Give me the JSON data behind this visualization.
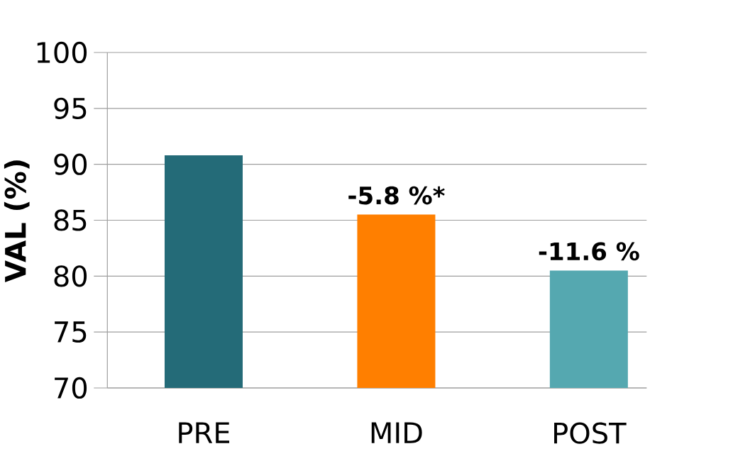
{
  "chart_data": {
    "type": "bar",
    "ylabel": "VAL (%)",
    "categories": [
      "PRE",
      "MID",
      "POST"
    ],
    "values": [
      90.8,
      85.5,
      80.5
    ],
    "colors": [
      "#246b78",
      "#ff7f00",
      "#55a8b0"
    ],
    "ylim": [
      70,
      100
    ],
    "yticks": [
      70,
      75,
      80,
      85,
      90,
      95,
      100
    ],
    "grid": "y",
    "annotations": [
      {
        "text": "-5.8 %*",
        "x": "MID",
        "y": 85.5
      },
      {
        "text": "-11.6 %",
        "x": "POST",
        "y": 80.5
      }
    ]
  }
}
